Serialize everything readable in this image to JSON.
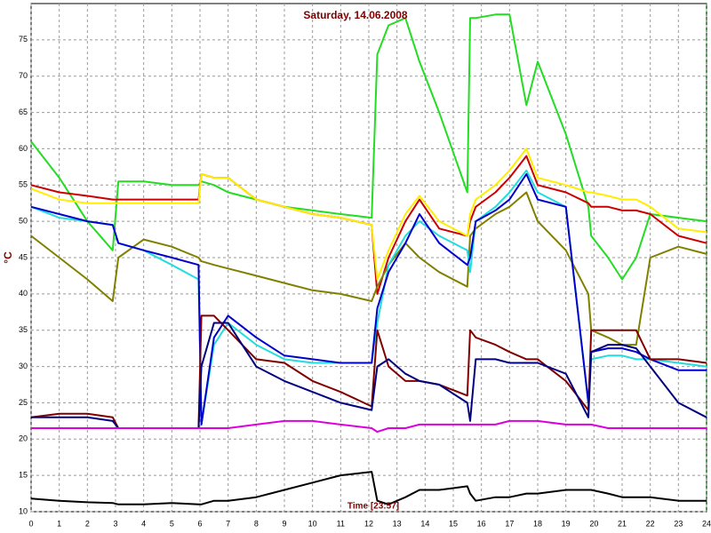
{
  "chart_data": {
    "type": "line",
    "title": "Saturday, 14.06.2008",
    "y_label": "°C",
    "x_label": "Time [23:57]",
    "x": [
      0,
      1,
      2,
      2.9,
      3.1,
      4,
      5,
      5.95,
      6.05,
      6.5,
      7,
      8,
      9,
      10,
      11,
      12.1,
      12.3,
      12.7,
      13.3,
      13.8,
      14.5,
      15.5,
      15.6,
      15.8,
      16.5,
      17,
      17.6,
      18,
      19,
      19.8,
      19.9,
      20.5,
      21,
      21.5,
      22,
      23,
      24
    ],
    "xlim": [
      0,
      24
    ],
    "xticks": [
      0,
      1,
      2,
      3,
      4,
      5,
      6,
      7,
      8,
      9,
      10,
      11,
      12,
      13,
      14,
      15,
      16,
      17,
      18,
      19,
      20,
      21,
      22,
      23,
      24
    ],
    "ylim": [
      10,
      80
    ],
    "yticks": [
      10,
      15,
      20,
      25,
      30,
      35,
      40,
      45,
      50,
      55,
      60,
      65,
      70,
      75
    ],
    "grid": true,
    "series": [
      {
        "color": "#22dd22",
        "values": [
          61,
          56,
          50,
          46,
          55.5,
          55.5,
          55,
          55,
          55.5,
          55,
          54,
          53,
          52,
          51.5,
          51,
          50.5,
          73,
          77,
          78,
          72,
          65,
          54,
          78,
          78,
          78.5,
          78.5,
          66,
          72,
          62,
          52,
          48,
          45,
          42,
          45,
          51,
          50.5,
          50
        ]
      },
      {
        "color": "#cc0000",
        "values": [
          55,
          54,
          53.5,
          53,
          53,
          53,
          53,
          53,
          56.5,
          56,
          56,
          53,
          52,
          51,
          50.5,
          49.5,
          40,
          45,
          50,
          53,
          49,
          48,
          50,
          52,
          54,
          56,
          59,
          55,
          54,
          52.5,
          52,
          52,
          51.5,
          51.5,
          51,
          48,
          47
        ]
      },
      {
        "color": "#ffee00",
        "values": [
          54.5,
          53,
          52.5,
          52.5,
          52.5,
          52.5,
          52.5,
          52.5,
          56.5,
          56,
          56,
          53,
          52,
          51,
          50.5,
          49.5,
          42,
          46,
          51,
          53.5,
          50,
          48,
          51,
          53,
          55,
          57,
          60,
          56,
          55,
          54,
          54,
          53.5,
          53,
          53,
          52,
          49,
          48.5
        ]
      },
      {
        "color": "#808000",
        "values": [
          48,
          45,
          42,
          39,
          45,
          47.5,
          46.5,
          45,
          44.5,
          44,
          43.5,
          42.5,
          41.5,
          40.5,
          40,
          39,
          41,
          44,
          47,
          45,
          43,
          41,
          48,
          49,
          51,
          52,
          54,
          50,
          46,
          40,
          35,
          34,
          33,
          33,
          45,
          46.5,
          45.5
        ]
      },
      {
        "color": "#22dddd",
        "values": [
          52,
          50.5,
          50,
          49.5,
          47,
          46,
          44,
          42,
          22,
          33,
          36,
          33,
          31,
          30.5,
          30.5,
          30.5,
          36,
          44,
          48,
          50,
          48,
          46,
          43,
          50,
          52,
          54,
          57,
          54,
          52,
          25,
          31,
          31.5,
          31.5,
          31,
          31,
          30.5,
          30
        ]
      },
      {
        "color": "#0000cc",
        "values": [
          52,
          51,
          50,
          49.5,
          47,
          46,
          45,
          44,
          22,
          34,
          37,
          34,
          31.5,
          31,
          30.5,
          30.5,
          38,
          43,
          47,
          51,
          47,
          44,
          45,
          50,
          51.5,
          53,
          56.5,
          53,
          52,
          25,
          32,
          32.5,
          32.5,
          32,
          31,
          29.5,
          29.5
        ]
      },
      {
        "color": "#800000",
        "values": [
          23,
          23.5,
          23.5,
          23,
          21.5,
          21.5,
          21.5,
          21.5,
          37,
          37,
          35,
          31,
          30.5,
          28,
          26.5,
          24.5,
          35,
          30,
          28,
          28,
          27.5,
          26,
          35,
          34,
          33,
          32,
          31,
          31,
          28,
          24,
          35,
          35,
          35,
          35,
          31,
          31,
          30.5
        ]
      },
      {
        "color": "#000080",
        "values": [
          23,
          23,
          23,
          22.5,
          21.5,
          21.5,
          21.5,
          21.5,
          30,
          36,
          36,
          30,
          28,
          26.5,
          25,
          24,
          30,
          31,
          29,
          28,
          27.5,
          25,
          22.5,
          31,
          31,
          30.5,
          30.5,
          30.5,
          29,
          23,
          32,
          33,
          33,
          32.5,
          30,
          25,
          23
        ]
      },
      {
        "color": "#dd00dd",
        "values": [
          21.5,
          21.5,
          21.5,
          21.5,
          21.5,
          21.5,
          21.5,
          21.5,
          21.5,
          21.5,
          21.5,
          22,
          22.5,
          22.5,
          22,
          21.5,
          21,
          21.5,
          21.5,
          22,
          22,
          22,
          22,
          22,
          22,
          22.5,
          22.5,
          22.5,
          22,
          22,
          22,
          21.5,
          21.5,
          21.5,
          21.5,
          21.5,
          21.5
        ]
      },
      {
        "color": "#000000",
        "values": [
          11.8,
          11.5,
          11.3,
          11.2,
          11,
          11,
          11.2,
          11,
          11,
          11.5,
          11.5,
          12,
          13,
          14,
          15,
          15.5,
          11.5,
          11,
          12,
          13,
          13,
          13.5,
          12.5,
          11.5,
          12,
          12,
          12.5,
          12.5,
          13,
          13,
          13,
          12.5,
          12,
          12,
          12,
          11.5,
          11.5
        ]
      }
    ]
  }
}
